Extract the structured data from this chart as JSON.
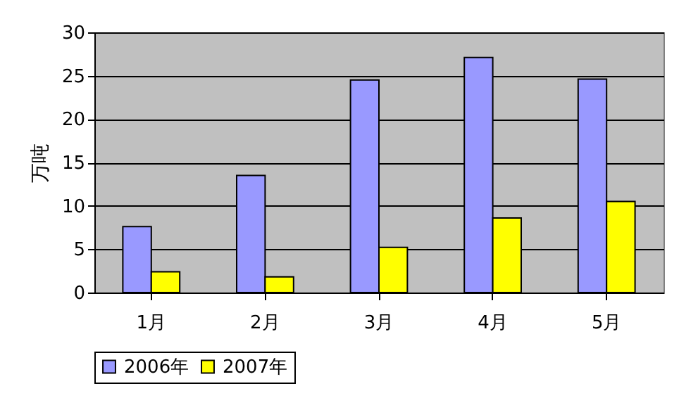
{
  "chart_data": {
    "type": "bar",
    "ylabel": "万吨",
    "categories": [
      "1月",
      "2月",
      "3月",
      "4月",
      "5月"
    ],
    "series": [
      {
        "name": "2006年",
        "color": "#9999ff",
        "values": [
          7.6,
          13.5,
          24.5,
          27.1,
          24.6
        ]
      },
      {
        "name": "2007年",
        "color": "#ffff00",
        "values": [
          2.4,
          1.8,
          5.2,
          8.6,
          10.5
        ]
      }
    ],
    "ylim": [
      0,
      30
    ],
    "yticks": [
      0,
      5,
      10,
      15,
      20,
      25,
      30
    ],
    "grid": "y",
    "legend": "bottom"
  }
}
